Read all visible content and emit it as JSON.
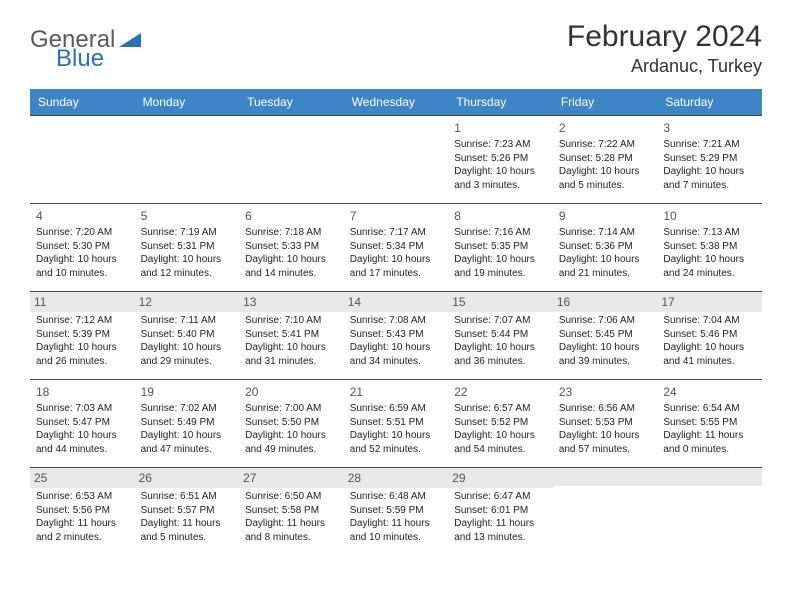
{
  "header": {
    "logo_general": "General",
    "logo_blue": "Blue",
    "month_title": "February 2024",
    "location": "Ardanuc, Turkey"
  },
  "colors": {
    "header_bg": "#3d85c6",
    "header_text": "#ffffff",
    "greybar": "#e8e8e8",
    "border": "#444444",
    "logo_grey": "#5a5a5a",
    "logo_blue": "#2a72b5"
  },
  "weekdays": [
    "Sunday",
    "Monday",
    "Tuesday",
    "Wednesday",
    "Thursday",
    "Friday",
    "Saturday"
  ],
  "grid_greybar_rows": [
    2,
    4
  ],
  "weeks": [
    [
      null,
      null,
      null,
      null,
      {
        "day": "1",
        "sunrise": "Sunrise: 7:23 AM",
        "sunset": "Sunset: 5:26 PM",
        "daylight": "Daylight: 10 hours and 3 minutes."
      },
      {
        "day": "2",
        "sunrise": "Sunrise: 7:22 AM",
        "sunset": "Sunset: 5:28 PM",
        "daylight": "Daylight: 10 hours and 5 minutes."
      },
      {
        "day": "3",
        "sunrise": "Sunrise: 7:21 AM",
        "sunset": "Sunset: 5:29 PM",
        "daylight": "Daylight: 10 hours and 7 minutes."
      }
    ],
    [
      {
        "day": "4",
        "sunrise": "Sunrise: 7:20 AM",
        "sunset": "Sunset: 5:30 PM",
        "daylight": "Daylight: 10 hours and 10 minutes."
      },
      {
        "day": "5",
        "sunrise": "Sunrise: 7:19 AM",
        "sunset": "Sunset: 5:31 PM",
        "daylight": "Daylight: 10 hours and 12 minutes."
      },
      {
        "day": "6",
        "sunrise": "Sunrise: 7:18 AM",
        "sunset": "Sunset: 5:33 PM",
        "daylight": "Daylight: 10 hours and 14 minutes."
      },
      {
        "day": "7",
        "sunrise": "Sunrise: 7:17 AM",
        "sunset": "Sunset: 5:34 PM",
        "daylight": "Daylight: 10 hours and 17 minutes."
      },
      {
        "day": "8",
        "sunrise": "Sunrise: 7:16 AM",
        "sunset": "Sunset: 5:35 PM",
        "daylight": "Daylight: 10 hours and 19 minutes."
      },
      {
        "day": "9",
        "sunrise": "Sunrise: 7:14 AM",
        "sunset": "Sunset: 5:36 PM",
        "daylight": "Daylight: 10 hours and 21 minutes."
      },
      {
        "day": "10",
        "sunrise": "Sunrise: 7:13 AM",
        "sunset": "Sunset: 5:38 PM",
        "daylight": "Daylight: 10 hours and 24 minutes."
      }
    ],
    [
      {
        "day": "11",
        "sunrise": "Sunrise: 7:12 AM",
        "sunset": "Sunset: 5:39 PM",
        "daylight": "Daylight: 10 hours and 26 minutes."
      },
      {
        "day": "12",
        "sunrise": "Sunrise: 7:11 AM",
        "sunset": "Sunset: 5:40 PM",
        "daylight": "Daylight: 10 hours and 29 minutes."
      },
      {
        "day": "13",
        "sunrise": "Sunrise: 7:10 AM",
        "sunset": "Sunset: 5:41 PM",
        "daylight": "Daylight: 10 hours and 31 minutes."
      },
      {
        "day": "14",
        "sunrise": "Sunrise: 7:08 AM",
        "sunset": "Sunset: 5:43 PM",
        "daylight": "Daylight: 10 hours and 34 minutes."
      },
      {
        "day": "15",
        "sunrise": "Sunrise: 7:07 AM",
        "sunset": "Sunset: 5:44 PM",
        "daylight": "Daylight: 10 hours and 36 minutes."
      },
      {
        "day": "16",
        "sunrise": "Sunrise: 7:06 AM",
        "sunset": "Sunset: 5:45 PM",
        "daylight": "Daylight: 10 hours and 39 minutes."
      },
      {
        "day": "17",
        "sunrise": "Sunrise: 7:04 AM",
        "sunset": "Sunset: 5:46 PM",
        "daylight": "Daylight: 10 hours and 41 minutes."
      }
    ],
    [
      {
        "day": "18",
        "sunrise": "Sunrise: 7:03 AM",
        "sunset": "Sunset: 5:47 PM",
        "daylight": "Daylight: 10 hours and 44 minutes."
      },
      {
        "day": "19",
        "sunrise": "Sunrise: 7:02 AM",
        "sunset": "Sunset: 5:49 PM",
        "daylight": "Daylight: 10 hours and 47 minutes."
      },
      {
        "day": "20",
        "sunrise": "Sunrise: 7:00 AM",
        "sunset": "Sunset: 5:50 PM",
        "daylight": "Daylight: 10 hours and 49 minutes."
      },
      {
        "day": "21",
        "sunrise": "Sunrise: 6:59 AM",
        "sunset": "Sunset: 5:51 PM",
        "daylight": "Daylight: 10 hours and 52 minutes."
      },
      {
        "day": "22",
        "sunrise": "Sunrise: 6:57 AM",
        "sunset": "Sunset: 5:52 PM",
        "daylight": "Daylight: 10 hours and 54 minutes."
      },
      {
        "day": "23",
        "sunrise": "Sunrise: 6:56 AM",
        "sunset": "Sunset: 5:53 PM",
        "daylight": "Daylight: 10 hours and 57 minutes."
      },
      {
        "day": "24",
        "sunrise": "Sunrise: 6:54 AM",
        "sunset": "Sunset: 5:55 PM",
        "daylight": "Daylight: 11 hours and 0 minutes."
      }
    ],
    [
      {
        "day": "25",
        "sunrise": "Sunrise: 6:53 AM",
        "sunset": "Sunset: 5:56 PM",
        "daylight": "Daylight: 11 hours and 2 minutes."
      },
      {
        "day": "26",
        "sunrise": "Sunrise: 6:51 AM",
        "sunset": "Sunset: 5:57 PM",
        "daylight": "Daylight: 11 hours and 5 minutes."
      },
      {
        "day": "27",
        "sunrise": "Sunrise: 6:50 AM",
        "sunset": "Sunset: 5:58 PM",
        "daylight": "Daylight: 11 hours and 8 minutes."
      },
      {
        "day": "28",
        "sunrise": "Sunrise: 6:48 AM",
        "sunset": "Sunset: 5:59 PM",
        "daylight": "Daylight: 11 hours and 10 minutes."
      },
      {
        "day": "29",
        "sunrise": "Sunrise: 6:47 AM",
        "sunset": "Sunset: 6:01 PM",
        "daylight": "Daylight: 11 hours and 13 minutes."
      },
      null,
      null
    ]
  ]
}
